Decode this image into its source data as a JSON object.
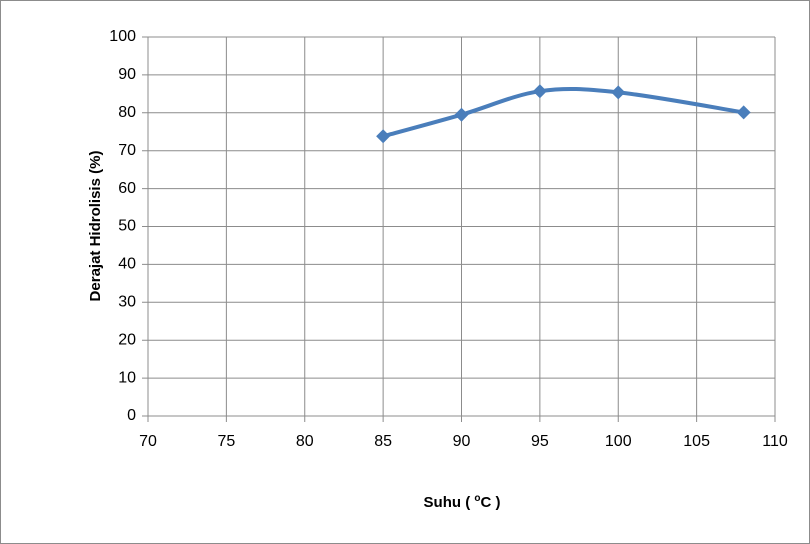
{
  "chart_data": {
    "type": "line",
    "smooth": true,
    "x_label": {
      "before": "Suhu ( ",
      "sup": "o",
      "after": "C )"
    },
    "y_label": "Derajat Hidrolisis (%)",
    "x": [
      85,
      90,
      95,
      100,
      108
    ],
    "series": [
      {
        "color": "#4a7ebb",
        "values": [
          73.8,
          79.5,
          85.7,
          85.4,
          80.1
        ]
      }
    ],
    "xlim": [
      70,
      110
    ],
    "xticks": [
      70,
      75,
      80,
      85,
      90,
      95,
      100,
      105,
      110
    ],
    "ylim": [
      0,
      100
    ],
    "yticks": [
      0,
      10,
      20,
      30,
      40,
      50,
      60,
      70,
      80,
      90,
      100
    ],
    "grid": true
  }
}
